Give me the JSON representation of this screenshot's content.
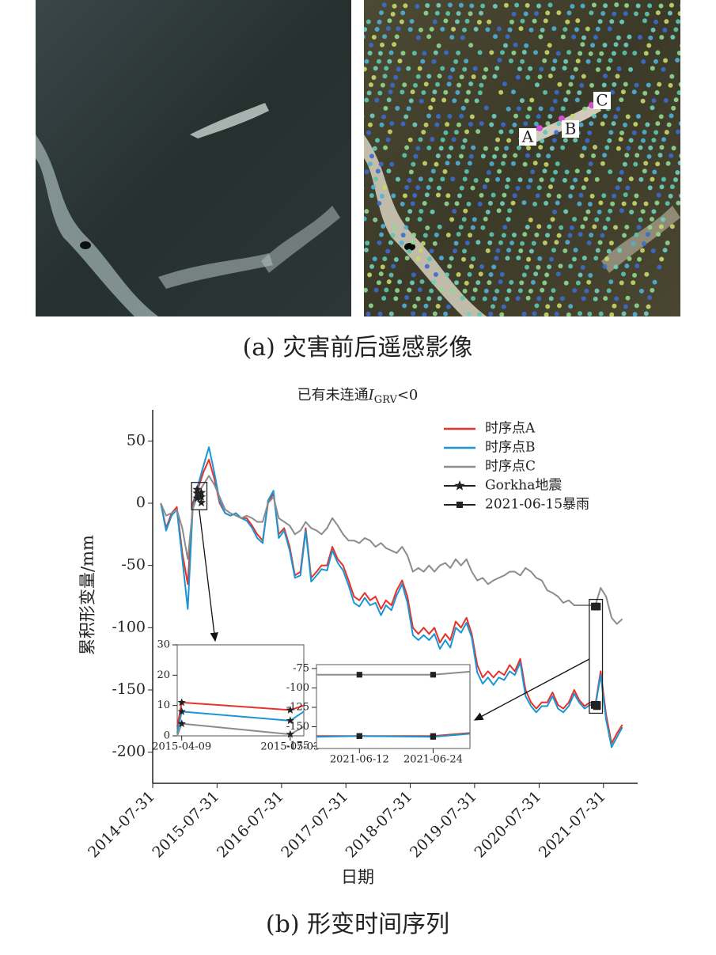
{
  "image_labels": [
    "A",
    "B",
    "C"
  ],
  "caption_a": "(a) 灾害前后遥感影像",
  "caption_b": "(b) 形变时间序列",
  "chart_data": [
    {
      "type": "line",
      "title": {
        "prefix": "已有未连通",
        "symbol": "I",
        "subscript": "GRV",
        "suffix": "<0"
      },
      "x_label": "日期",
      "y_label": "累积形变量/mm",
      "xlim": [
        "2014-07-31",
        "2022-02-10"
      ],
      "xticks": [
        "2014-07-31",
        "2015-07-31",
        "2016-07-31",
        "2017-07-31",
        "2018-07-31",
        "2019-07-31",
        "2020-07-31",
        "2021-07-31"
      ],
      "x_tick_rotation": 45,
      "ylim": [
        -225,
        75
      ],
      "yticks": [
        -200,
        -150,
        -100,
        -50,
        0,
        50
      ],
      "legend": "upper right",
      "x": [
        "2014-09-15",
        "2014-10-15",
        "2014-11-15",
        "2014-12-15",
        "2015-01-15",
        "2015-02-15",
        "2015-03-15",
        "2015-04-15",
        "2015-05-15",
        "2015-06-15",
        "2015-07-15",
        "2015-08-15",
        "2015-09-15",
        "2015-10-15",
        "2015-11-15",
        "2015-12-15",
        "2016-01-15",
        "2016-02-15",
        "2016-03-15",
        "2016-04-15",
        "2016-05-15",
        "2016-06-15",
        "2016-07-15",
        "2016-08-15",
        "2016-09-15",
        "2016-10-15",
        "2016-11-15",
        "2016-12-15",
        "2017-01-15",
        "2017-02-15",
        "2017-03-15",
        "2017-04-15",
        "2017-05-15",
        "2017-06-15",
        "2017-07-15",
        "2017-08-15",
        "2017-09-15",
        "2017-10-15",
        "2017-11-15",
        "2017-12-15",
        "2018-01-15",
        "2018-02-15",
        "2018-03-15",
        "2018-04-15",
        "2018-05-15",
        "2018-06-15",
        "2018-07-15",
        "2018-08-15",
        "2018-09-15",
        "2018-10-15",
        "2018-11-15",
        "2018-12-15",
        "2019-01-15",
        "2019-02-15",
        "2019-03-15",
        "2019-04-15",
        "2019-05-15",
        "2019-06-15",
        "2019-07-15",
        "2019-08-15",
        "2019-09-15",
        "2019-10-15",
        "2019-11-15",
        "2019-12-15",
        "2020-01-15",
        "2020-02-15",
        "2020-03-15",
        "2020-04-15",
        "2020-05-15",
        "2020-06-15",
        "2020-07-15",
        "2020-08-15",
        "2020-09-15",
        "2020-10-15",
        "2020-11-15",
        "2020-12-15",
        "2021-01-15",
        "2021-02-15",
        "2021-03-15",
        "2021-04-15",
        "2021-05-15",
        "2021-06-15",
        "2021-07-15",
        "2021-08-15",
        "2021-09-15",
        "2021-10-15",
        "2021-11-15"
      ],
      "series": [
        {
          "name": "时序点A",
          "color": "#e8312a",
          "values": [
            0,
            -20,
            -8,
            -3,
            -40,
            -65,
            0,
            12,
            25,
            35,
            20,
            0,
            -8,
            -10,
            -8,
            -12,
            -12,
            -18,
            -25,
            -30,
            0,
            8,
            -25,
            -20,
            -35,
            -58,
            -55,
            -20,
            -60,
            -55,
            -50,
            -50,
            -35,
            -45,
            -50,
            -62,
            -75,
            -78,
            -72,
            -78,
            -75,
            -85,
            -78,
            -82,
            -70,
            -62,
            -75,
            -100,
            -105,
            -100,
            -105,
            -100,
            -112,
            -105,
            -110,
            -95,
            -100,
            -92,
            -105,
            -130,
            -140,
            -135,
            -140,
            -135,
            -138,
            -130,
            -135,
            -125,
            -150,
            -160,
            -165,
            -160,
            -160,
            -152,
            -162,
            -165,
            -160,
            -150,
            -158,
            -163,
            -160,
            -162,
            -135,
            -170,
            -193,
            -185,
            -178
          ]
        },
        {
          "name": "时序点B",
          "color": "#1a96d4",
          "values": [
            0,
            -22,
            -10,
            -5,
            -45,
            -85,
            -5,
            15,
            30,
            45,
            25,
            2,
            -8,
            -10,
            -8,
            -12,
            -14,
            -20,
            -28,
            -32,
            2,
            10,
            -28,
            -22,
            -38,
            -60,
            -58,
            -22,
            -63,
            -58,
            -53,
            -54,
            -38,
            -48,
            -54,
            -66,
            -80,
            -83,
            -76,
            -82,
            -80,
            -90,
            -82,
            -86,
            -74,
            -65,
            -80,
            -106,
            -110,
            -106,
            -110,
            -105,
            -117,
            -110,
            -116,
            -100,
            -104,
            -96,
            -108,
            -136,
            -145,
            -140,
            -146,
            -140,
            -142,
            -135,
            -138,
            -128,
            -155,
            -163,
            -168,
            -163,
            -163,
            -155,
            -165,
            -168,
            -163,
            -153,
            -160,
            -165,
            -162,
            -163,
            -138,
            -174,
            -196,
            -188,
            -180
          ]
        },
        {
          "name": "时序点C",
          "color": "#8c8c8c",
          "values": [
            0,
            -10,
            -8,
            -5,
            -20,
            -45,
            -5,
            8,
            15,
            22,
            15,
            5,
            -5,
            -8,
            -10,
            -12,
            -10,
            -12,
            -15,
            -15,
            0,
            5,
            -12,
            -15,
            -18,
            -25,
            -22,
            -15,
            -20,
            -22,
            -25,
            -20,
            -12,
            -18,
            -25,
            -30,
            -30,
            -32,
            -28,
            -30,
            -35,
            -32,
            -36,
            -38,
            -40,
            -35,
            -42,
            -55,
            -52,
            -55,
            -50,
            -55,
            -50,
            -48,
            -52,
            -45,
            -50,
            -45,
            -55,
            -62,
            -60,
            -65,
            -62,
            -60,
            -58,
            -55,
            -55,
            -58,
            -52,
            -55,
            -60,
            -62,
            -70,
            -72,
            -75,
            -80,
            -78,
            -82,
            -82,
            -82,
            -82,
            -82,
            -68,
            -75,
            -92,
            -97,
            -93
          ]
        }
      ],
      "events": [
        {
          "name": "Gorkha地震",
          "marker": "star",
          "x": [
            "2015-04-09",
            "2015-04-09",
            "2015-04-09",
            "2015-05-03",
            "2015-05-03",
            "2015-05-03"
          ],
          "y": [
            11,
            8,
            4,
            8.5,
            5,
            0.5
          ]
        },
        {
          "name": "2021-06-15暴雨",
          "marker": "square",
          "x": [
            "2021-06-12",
            "2021-06-12",
            "2021-06-12",
            "2021-06-24",
            "2021-06-24",
            "2021-06-24"
          ],
          "y": [
            -162,
            -162,
            -83,
            -162,
            -163,
            -83
          ]
        }
      ]
    },
    {
      "type": "line",
      "xlim": [
        "2015-04-08",
        "2015-05-06"
      ],
      "xticks": [
        "2015-04-09",
        "2015-05-03"
      ],
      "ylim": [
        0,
        30
      ],
      "yticks": [
        0,
        10,
        20,
        30
      ],
      "x": [
        "2015-04-08",
        "2015-04-09",
        "2015-05-03",
        "2015-05-06"
      ],
      "series": [
        {
          "color": "#e8312a",
          "values": [
            3,
            11,
            8.5,
            10
          ]
        },
        {
          "color": "#1a96d4",
          "values": [
            1,
            8,
            5,
            8
          ]
        },
        {
          "color": "#8c8c8c",
          "values": [
            0,
            4,
            0.5,
            3
          ]
        }
      ],
      "events": [
        {
          "marker": "star",
          "x": [
            "2015-04-09",
            "2015-04-09",
            "2015-04-09",
            "2015-05-03",
            "2015-05-03",
            "2015-05-03"
          ],
          "y": [
            11,
            8,
            4,
            8.5,
            5,
            0.5
          ]
        }
      ]
    },
    {
      "type": "line",
      "xlim": [
        "2021-06-05",
        "2021-06-30"
      ],
      "xticks": [
        "2021-06-12",
        "2021-06-24"
      ],
      "ylim": [
        -178,
        -70
      ],
      "yticks": [
        -175,
        -150,
        -125,
        -100,
        -75
      ],
      "x": [
        "2021-06-05",
        "2021-06-12",
        "2021-06-24",
        "2021-06-30"
      ],
      "series": [
        {
          "color": "#e8312a",
          "values": [
            -162,
            -162,
            -162,
            -158
          ]
        },
        {
          "color": "#1a96d4",
          "values": [
            -163,
            -162,
            -163,
            -159
          ]
        },
        {
          "color": "#8c8c8c",
          "values": [
            -83,
            -83,
            -83,
            -79
          ]
        }
      ],
      "events": [
        {
          "marker": "square",
          "x": [
            "2021-06-12",
            "2021-06-12",
            "2021-06-12",
            "2021-06-24",
            "2021-06-24",
            "2021-06-24"
          ],
          "y": [
            -162,
            -162,
            -83,
            -162,
            -163,
            -83
          ]
        }
      ]
    }
  ]
}
